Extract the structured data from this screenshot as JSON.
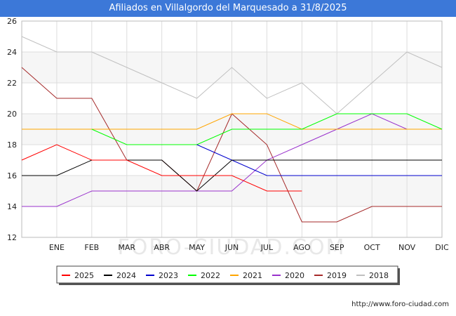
{
  "title": "Afiliados en Villalgordo del Marquesado a 31/8/2025",
  "source": "http://www.foro-ciudad.com",
  "watermark": "FORO-CIUDAD.COM",
  "chart_data": {
    "type": "line",
    "categories": [
      "",
      "ENE",
      "FEB",
      "MAR",
      "ABR",
      "MAY",
      "JUN",
      "JUL",
      "AGO",
      "SEP",
      "OCT",
      "NOV",
      "DIC"
    ],
    "ylim": [
      12,
      26
    ],
    "yticks": [
      12,
      14,
      16,
      18,
      20,
      22,
      24,
      26
    ],
    "grid": true,
    "legend_position": "bottom",
    "series": [
      {
        "name": "2018",
        "color": "#c0c0c0",
        "values": [
          25,
          24,
          24,
          23,
          22,
          21,
          23,
          21,
          22,
          20,
          22,
          24,
          23
        ]
      },
      {
        "name": "2019",
        "color": "#a52a2a",
        "values": [
          23,
          21,
          21,
          17,
          17,
          15,
          20,
          18,
          13,
          13,
          14,
          14,
          14
        ]
      },
      {
        "name": "2020",
        "color": "#9932cc",
        "values": [
          14,
          14,
          15,
          15,
          15,
          15,
          15,
          17,
          18,
          19,
          20,
          19,
          19
        ]
      },
      {
        "name": "2021",
        "color": "#ffa500",
        "values": [
          19,
          19,
          19,
          19,
          19,
          19,
          20,
          20,
          19,
          19,
          19,
          19,
          19
        ]
      },
      {
        "name": "2022",
        "color": "#00ff00",
        "values": [
          null,
          null,
          19,
          18,
          18,
          18,
          19,
          19,
          19,
          20,
          20,
          20,
          19
        ]
      },
      {
        "name": "2023",
        "color": "#0000cd",
        "values": [
          null,
          null,
          null,
          null,
          null,
          18,
          17,
          16,
          16,
          16,
          16,
          16,
          16
        ]
      },
      {
        "name": "2024",
        "color": "#000000",
        "values": [
          16,
          16,
          17,
          17,
          17,
          15,
          17,
          17,
          17,
          17,
          17,
          17,
          17
        ]
      },
      {
        "name": "2025",
        "color": "#ff0000",
        "values": [
          17,
          18,
          17,
          17,
          16,
          16,
          16,
          15,
          15,
          null,
          null,
          null,
          null
        ]
      }
    ],
    "legend_order": [
      "2025",
      "2024",
      "2023",
      "2022",
      "2021",
      "2020",
      "2019",
      "2018"
    ]
  }
}
